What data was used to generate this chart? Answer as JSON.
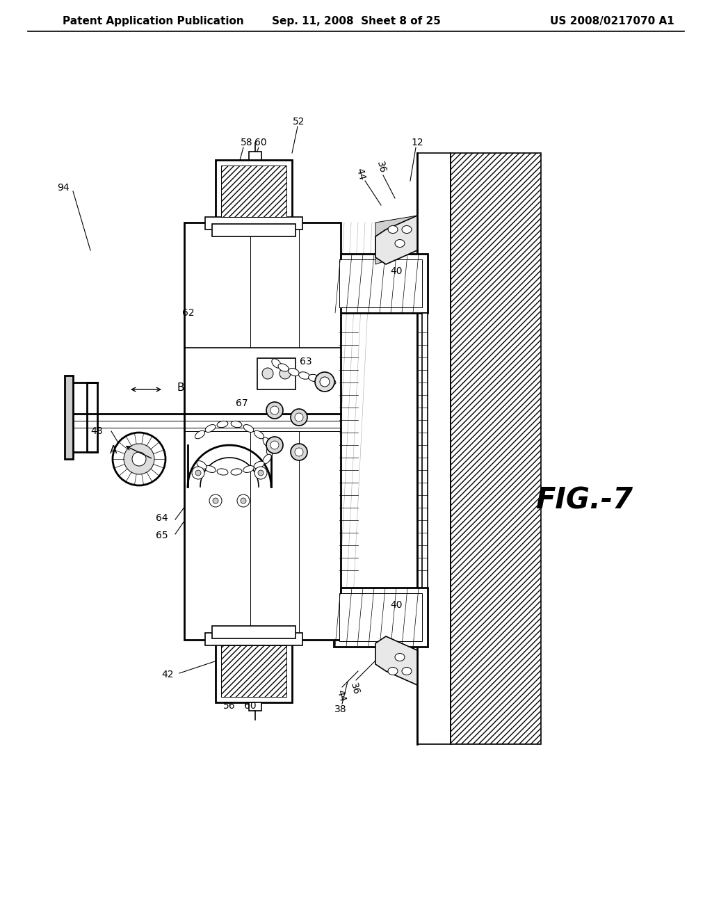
{
  "title_left": "Patent Application Publication",
  "title_mid": "Sep. 11, 2008  Sheet 8 of 25",
  "title_right": "US 2008/0217070 A1",
  "fig_label": "FIG-7",
  "background_color": "#ffffff",
  "line_color": "#000000",
  "header_fontsize": 11,
  "fig_label_fontsize": 28,
  "annotation_fontsize": 10
}
